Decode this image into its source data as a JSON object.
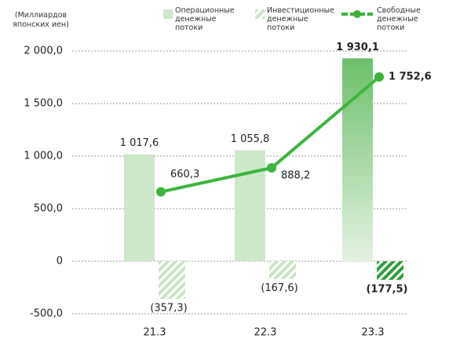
{
  "chart_data": {
    "type": "combo",
    "y_label": "(Миллиардов японских иен)",
    "categories": [
      "21.3",
      "22.3",
      "23.3"
    ],
    "highlight": "23.3",
    "ylim": [
      -500,
      2000
    ],
    "yticks": [
      {
        "value": -500,
        "label": "-500,0"
      },
      0,
      {
        "value": 500,
        "label": "500,0"
      },
      {
        "value": 1000,
        "label": "1 000,0"
      },
      {
        "value": 1500,
        "label": "1 500,0"
      },
      {
        "value": 2000,
        "label": "2 000,0"
      }
    ],
    "grid": true,
    "series": [
      {
        "name": "Операционные денежные потоки",
        "kind": "bar",
        "color": "#cde8c8",
        "highlight_color": "#6cc06a",
        "values": [
          1017.6,
          1055.8,
          1930.1
        ],
        "value_labels": [
          "1 017,6",
          "1 055,8",
          "1 930,1"
        ]
      },
      {
        "name": "Инвестиционные денежные потоки",
        "kind": "bar",
        "pattern": "hatch",
        "color": "#c8e4c2",
        "highlight_color": "#2f9e3a",
        "values": [
          -357.3,
          -167.6,
          -177.5
        ],
        "value_labels": [
          "(357,3)",
          "(167,6)",
          "(177,5)"
        ]
      },
      {
        "name": "Свободные денежные потоки",
        "kind": "line",
        "color": "#3cb43c",
        "values": [
          660.3,
          888.2,
          1752.6
        ],
        "value_labels": [
          "660,3",
          "888,2",
          "1 752,6"
        ]
      }
    ]
  }
}
